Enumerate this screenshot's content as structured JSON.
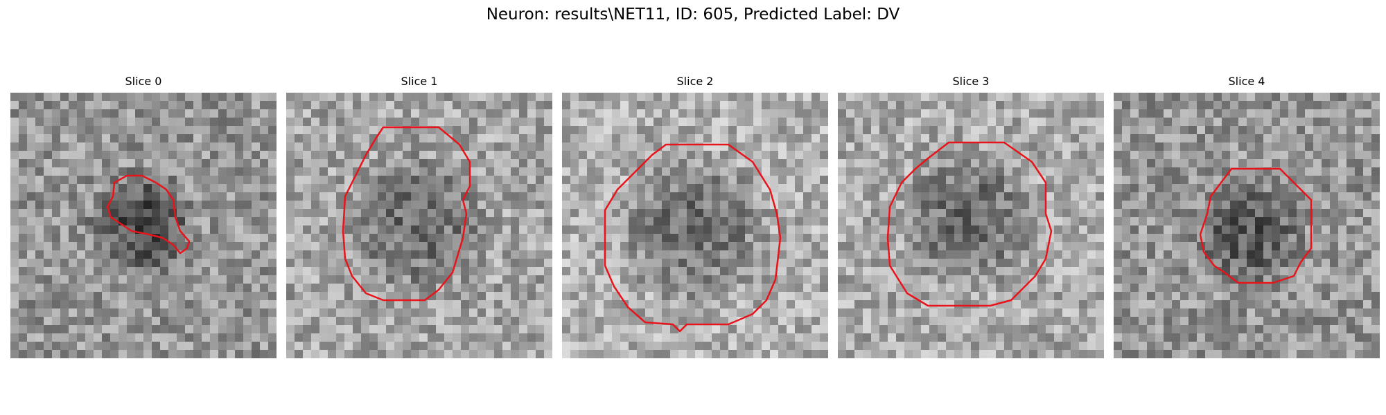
{
  "figure": {
    "title": "Neuron: results\\NET11, ID: 605, Predicted Label: DV"
  },
  "panels": [
    {
      "label": "Slice 0"
    },
    {
      "label": "Slice 1"
    },
    {
      "label": "Slice 2"
    },
    {
      "label": "Slice 3"
    },
    {
      "label": "Slice 4"
    }
  ],
  "colors": {
    "contour": "#e8141b"
  }
}
